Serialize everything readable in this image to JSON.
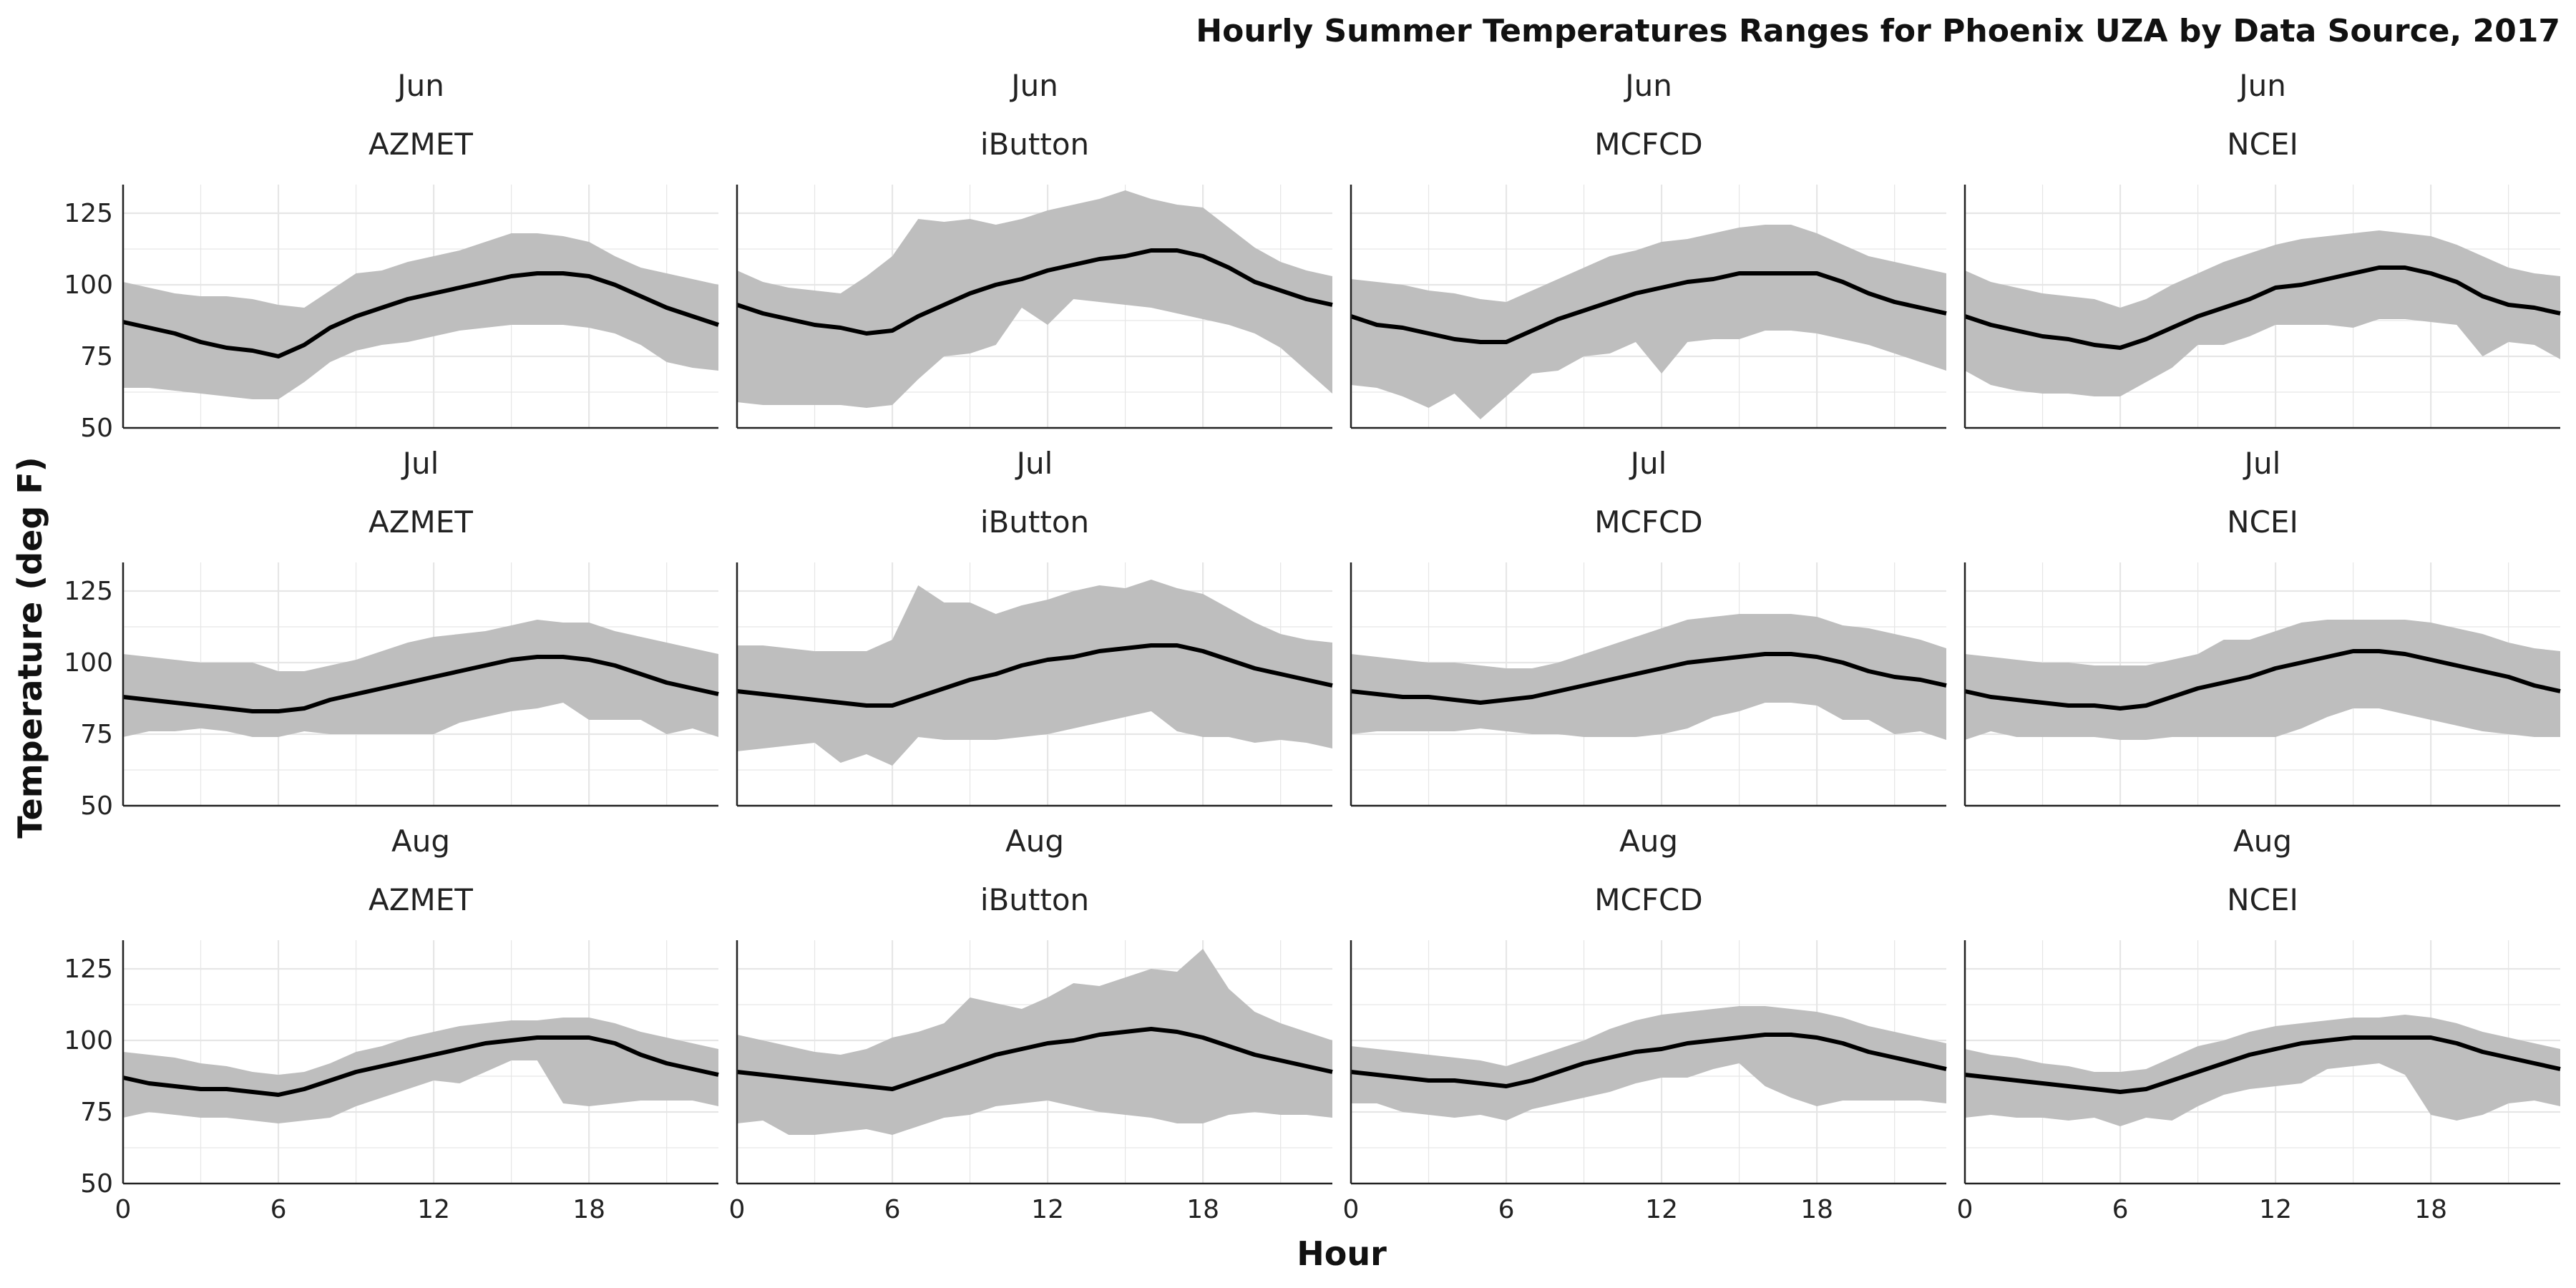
{
  "chart_data": {
    "type": "area",
    "title": "Hourly Summer Temperatures Ranges for Phoenix UZA by Data Source, 2017",
    "xlabel": "Hour",
    "ylabel": "Temperature (deg F)",
    "xlim": [
      0,
      23
    ],
    "ylim": [
      50,
      135
    ],
    "x_ticks": [
      0,
      6,
      12,
      18
    ],
    "y_ticks": [
      50,
      75,
      100,
      125
    ],
    "grid": true,
    "months": [
      "Jun",
      "Jul",
      "Aug"
    ],
    "sources": [
      "AZMET",
      "iButton",
      "MCFCD",
      "NCEI"
    ],
    "x": [
      0,
      1,
      2,
      3,
      4,
      5,
      6,
      7,
      8,
      9,
      10,
      11,
      12,
      13,
      14,
      15,
      16,
      17,
      18,
      19,
      20,
      21,
      22,
      23
    ],
    "colors": {
      "band": "#bebebe",
      "line": "#000000",
      "grid": "#e6e6e6",
      "axis": "#222222"
    },
    "panels": [
      {
        "month": "Jun",
        "source": "AZMET",
        "mean": [
          87,
          85,
          83,
          80,
          78,
          77,
          75,
          79,
          85,
          89,
          92,
          95,
          97,
          99,
          101,
          103,
          104,
          104,
          103,
          100,
          96,
          92,
          89,
          86
        ],
        "min": [
          64,
          64,
          63,
          62,
          61,
          60,
          60,
          66,
          73,
          77,
          79,
          80,
          82,
          84,
          85,
          86,
          86,
          86,
          85,
          83,
          79,
          73,
          71,
          70
        ],
        "max": [
          101,
          99,
          97,
          96,
          96,
          95,
          93,
          92,
          98,
          104,
          105,
          108,
          110,
          112,
          115,
          118,
          118,
          117,
          115,
          110,
          106,
          104,
          102,
          100
        ]
      },
      {
        "month": "Jun",
        "source": "iButton",
        "mean": [
          93,
          90,
          88,
          86,
          85,
          83,
          84,
          89,
          93,
          97,
          100,
          102,
          105,
          107,
          109,
          110,
          112,
          112,
          110,
          106,
          101,
          98,
          95,
          93
        ],
        "min": [
          59,
          58,
          58,
          58,
          58,
          57,
          58,
          67,
          75,
          76,
          79,
          92,
          86,
          95,
          94,
          93,
          92,
          90,
          88,
          86,
          83,
          78,
          70,
          62
        ],
        "max": [
          105,
          101,
          99,
          98,
          97,
          103,
          110,
          123,
          122,
          123,
          121,
          123,
          126,
          128,
          130,
          133,
          130,
          128,
          127,
          120,
          113,
          108,
          105,
          103
        ]
      },
      {
        "month": "Jun",
        "source": "MCFCD",
        "mean": [
          89,
          86,
          85,
          83,
          81,
          80,
          80,
          84,
          88,
          91,
          94,
          97,
          99,
          101,
          102,
          104,
          104,
          104,
          104,
          101,
          97,
          94,
          92,
          90
        ],
        "min": [
          65,
          64,
          61,
          57,
          62,
          53,
          61,
          69,
          70,
          75,
          76,
          80,
          69,
          80,
          81,
          81,
          84,
          84,
          83,
          81,
          79,
          76,
          73,
          70
        ],
        "max": [
          102,
          101,
          100,
          98,
          97,
          95,
          94,
          98,
          102,
          106,
          110,
          112,
          115,
          116,
          118,
          120,
          121,
          121,
          118,
          114,
          110,
          108,
          106,
          104
        ]
      },
      {
        "month": "Jun",
        "source": "NCEI",
        "mean": [
          89,
          86,
          84,
          82,
          81,
          79,
          78,
          81,
          85,
          89,
          92,
          95,
          99,
          100,
          102,
          104,
          106,
          106,
          104,
          101,
          96,
          93,
          92,
          90
        ],
        "min": [
          70,
          65,
          63,
          62,
          62,
          61,
          61,
          66,
          71,
          79,
          79,
          82,
          86,
          86,
          86,
          85,
          88,
          88,
          87,
          86,
          75,
          80,
          79,
          74
        ],
        "max": [
          105,
          101,
          99,
          97,
          96,
          95,
          92,
          95,
          100,
          104,
          108,
          111,
          114,
          116,
          117,
          118,
          119,
          118,
          117,
          114,
          110,
          106,
          104,
          103
        ]
      },
      {
        "month": "Jul",
        "source": "AZMET",
        "mean": [
          88,
          87,
          86,
          85,
          84,
          83,
          83,
          84,
          87,
          89,
          91,
          93,
          95,
          97,
          99,
          101,
          102,
          102,
          101,
          99,
          96,
          93,
          91,
          89
        ],
        "min": [
          74,
          76,
          76,
          77,
          76,
          74,
          74,
          76,
          75,
          75,
          75,
          75,
          75,
          79,
          81,
          83,
          84,
          86,
          80,
          80,
          80,
          75,
          77,
          74
        ],
        "max": [
          103,
          102,
          101,
          100,
          100,
          100,
          97,
          97,
          99,
          101,
          104,
          107,
          109,
          110,
          111,
          113,
          115,
          114,
          114,
          111,
          109,
          107,
          105,
          103
        ]
      },
      {
        "month": "Jul",
        "source": "iButton",
        "mean": [
          90,
          89,
          88,
          87,
          86,
          85,
          85,
          88,
          91,
          94,
          96,
          99,
          101,
          102,
          104,
          105,
          106,
          106,
          104,
          101,
          98,
          96,
          94,
          92
        ],
        "min": [
          69,
          70,
          71,
          72,
          65,
          68,
          64,
          74,
          73,
          73,
          73,
          74,
          75,
          77,
          79,
          81,
          83,
          76,
          74,
          74,
          72,
          73,
          72,
          70
        ],
        "max": [
          106,
          106,
          105,
          104,
          104,
          104,
          108,
          127,
          121,
          121,
          117,
          120,
          122,
          125,
          127,
          126,
          129,
          126,
          124,
          119,
          114,
          110,
          108,
          107
        ]
      },
      {
        "month": "Jul",
        "source": "MCFCD",
        "mean": [
          90,
          89,
          88,
          88,
          87,
          86,
          87,
          88,
          90,
          92,
          94,
          96,
          98,
          100,
          101,
          102,
          103,
          103,
          102,
          100,
          97,
          95,
          94,
          92
        ],
        "min": [
          75,
          76,
          76,
          76,
          76,
          77,
          76,
          75,
          75,
          74,
          74,
          74,
          75,
          77,
          81,
          83,
          86,
          86,
          85,
          80,
          80,
          75,
          76,
          73
        ],
        "max": [
          103,
          102,
          101,
          100,
          100,
          99,
          98,
          98,
          100,
          103,
          106,
          109,
          112,
          115,
          116,
          117,
          117,
          117,
          116,
          113,
          112,
          110,
          108,
          105
        ]
      },
      {
        "month": "Jul",
        "source": "NCEI",
        "mean": [
          90,
          88,
          87,
          86,
          85,
          85,
          84,
          85,
          88,
          91,
          93,
          95,
          98,
          100,
          102,
          104,
          104,
          103,
          101,
          99,
          97,
          95,
          92,
          90
        ],
        "min": [
          73,
          76,
          74,
          74,
          74,
          74,
          73,
          73,
          74,
          74,
          74,
          74,
          74,
          77,
          81,
          84,
          84,
          82,
          80,
          78,
          76,
          75,
          74,
          74
        ],
        "max": [
          103,
          102,
          101,
          100,
          100,
          99,
          99,
          99,
          101,
          103,
          108,
          108,
          111,
          114,
          115,
          115,
          115,
          115,
          114,
          112,
          110,
          107,
          105,
          104
        ]
      },
      {
        "month": "Aug",
        "source": "AZMET",
        "mean": [
          87,
          85,
          84,
          83,
          83,
          82,
          81,
          83,
          86,
          89,
          91,
          93,
          95,
          97,
          99,
          100,
          101,
          101,
          101,
          99,
          95,
          92,
          90,
          88
        ],
        "min": [
          73,
          75,
          74,
          73,
          73,
          72,
          71,
          72,
          73,
          77,
          80,
          83,
          86,
          85,
          89,
          93,
          93,
          78,
          77,
          78,
          79,
          79,
          79,
          77
        ],
        "max": [
          96,
          95,
          94,
          92,
          91,
          89,
          88,
          89,
          92,
          96,
          98,
          101,
          103,
          105,
          106,
          107,
          107,
          108,
          108,
          106,
          103,
          101,
          99,
          97
        ]
      },
      {
        "month": "Aug",
        "source": "iButton",
        "mean": [
          89,
          88,
          87,
          86,
          85,
          84,
          83,
          86,
          89,
          92,
          95,
          97,
          99,
          100,
          102,
          103,
          104,
          103,
          101,
          98,
          95,
          93,
          91,
          89
        ],
        "min": [
          71,
          72,
          67,
          67,
          68,
          69,
          67,
          70,
          73,
          74,
          77,
          78,
          79,
          77,
          75,
          74,
          73,
          71,
          71,
          74,
          75,
          74,
          74,
          73
        ],
        "max": [
          102,
          100,
          98,
          96,
          95,
          97,
          101,
          103,
          106,
          115,
          113,
          111,
          115,
          120,
          119,
          122,
          125,
          124,
          132,
          118,
          110,
          106,
          103,
          100
        ]
      },
      {
        "month": "Aug",
        "source": "MCFCD",
        "mean": [
          89,
          88,
          87,
          86,
          86,
          85,
          84,
          86,
          89,
          92,
          94,
          96,
          97,
          99,
          100,
          101,
          102,
          102,
          101,
          99,
          96,
          94,
          92,
          90
        ],
        "min": [
          78,
          78,
          75,
          74,
          73,
          74,
          72,
          76,
          78,
          80,
          82,
          85,
          87,
          87,
          90,
          92,
          84,
          80,
          77,
          79,
          79,
          79,
          79,
          78
        ],
        "max": [
          98,
          97,
          96,
          95,
          94,
          93,
          91,
          94,
          97,
          100,
          104,
          107,
          109,
          110,
          111,
          112,
          112,
          111,
          110,
          108,
          105,
          103,
          101,
          99
        ]
      },
      {
        "month": "Aug",
        "source": "NCEI",
        "mean": [
          88,
          87,
          86,
          85,
          84,
          83,
          82,
          83,
          86,
          89,
          92,
          95,
          97,
          99,
          100,
          101,
          101,
          101,
          101,
          99,
          96,
          94,
          92,
          90
        ],
        "min": [
          73,
          74,
          73,
          73,
          72,
          73,
          70,
          73,
          72,
          77,
          81,
          83,
          84,
          85,
          90,
          91,
          92,
          88,
          74,
          72,
          74,
          78,
          79,
          77
        ],
        "max": [
          97,
          95,
          94,
          92,
          91,
          89,
          89,
          90,
          94,
          98,
          100,
          103,
          105,
          106,
          107,
          108,
          108,
          109,
          108,
          106,
          103,
          101,
          99,
          97
        ]
      }
    ]
  }
}
